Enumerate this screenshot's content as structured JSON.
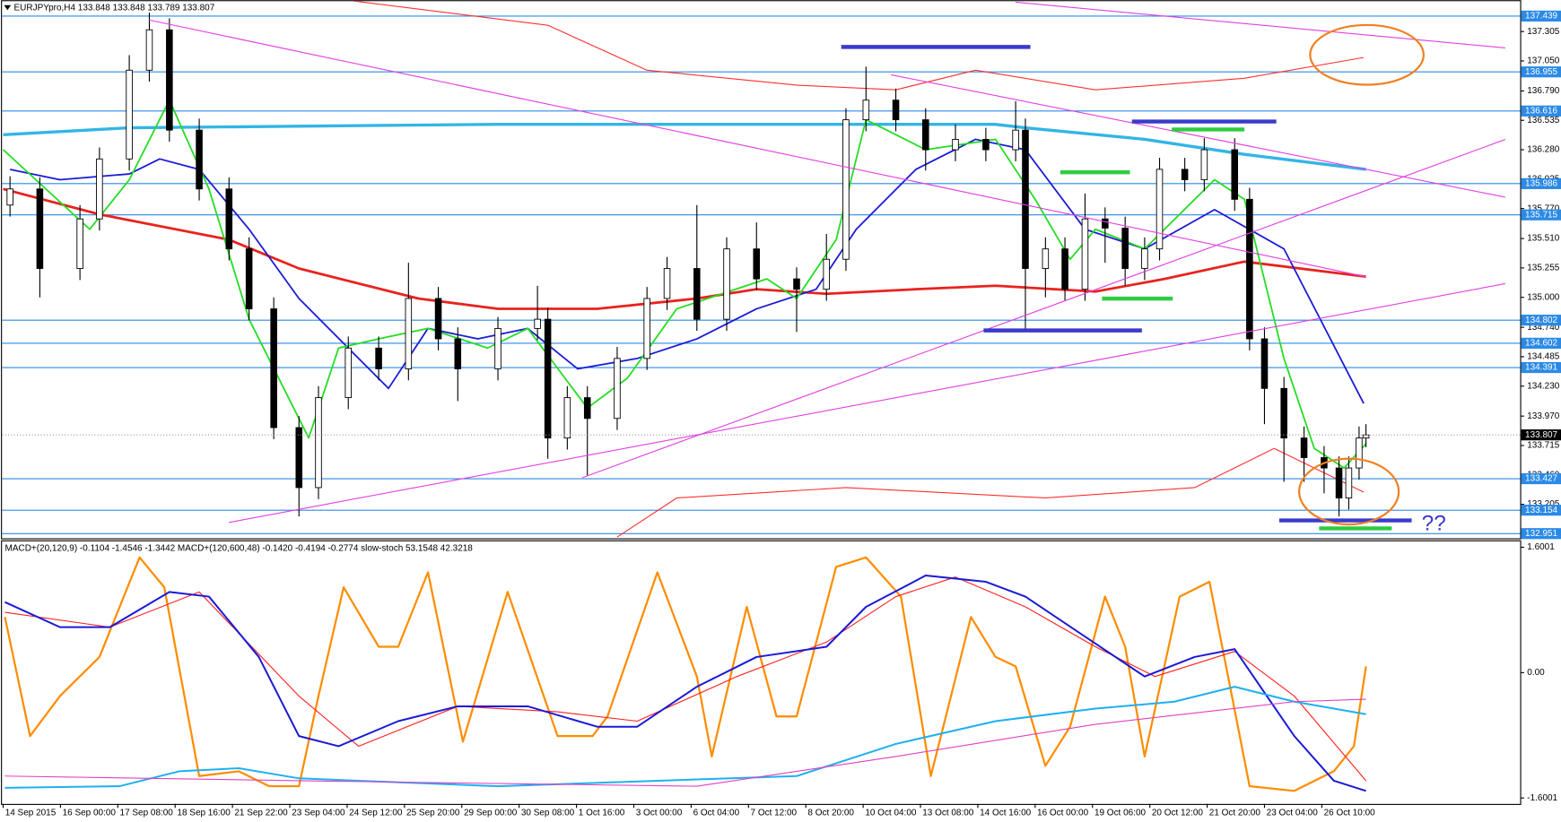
{
  "chart_data": [
    {
      "type": "candlestick",
      "title": "EURJPYpro,H4  133.848 133.848 133.789 133.807",
      "annotations": [
        "??"
      ],
      "xlim": [
        -0.02,
        26.46
      ],
      "xticks": [
        {
          "value": 0,
          "label": "14 Sep 2015"
        },
        {
          "value": 1,
          "label": "16 Sep 00:00"
        },
        {
          "value": 2,
          "label": "17 Sep 08:00"
        },
        {
          "value": 3,
          "label": "18 Sep 16:00"
        },
        {
          "value": 4,
          "label": "21 Sep 22:00"
        },
        {
          "value": 5,
          "label": "23 Sep 04:00"
        },
        {
          "value": 6,
          "label": "24 Sep 12:00"
        },
        {
          "value": 7,
          "label": "25 Sep 20:00"
        },
        {
          "value": 8,
          "label": "29 Sep 00:00"
        },
        {
          "value": 9,
          "label": "30 Sep 08:00"
        },
        {
          "value": 10,
          "label": "1 Oct 16:00"
        },
        {
          "value": 11,
          "label": "3 Oct 00:00"
        },
        {
          "value": 12,
          "label": "6 Oct 04:00"
        },
        {
          "value": 13,
          "label": "7 Oct 12:00"
        },
        {
          "value": 14,
          "label": "8 Oct 20:00"
        },
        {
          "value": 15,
          "label": "10 Oct 04:00"
        },
        {
          "value": 16,
          "label": "13 Oct 08:00"
        },
        {
          "value": 17,
          "label": "14 Oct 16:00"
        },
        {
          "value": 18,
          "label": "16 Oct 00:00"
        },
        {
          "value": 19,
          "label": "19 Oct 06:00"
        },
        {
          "value": 20,
          "label": "20 Oct 12:00"
        },
        {
          "value": 21,
          "label": "21 Oct 20:00"
        },
        {
          "value": 22,
          "label": "23 Oct 04:00"
        },
        {
          "value": 23,
          "label": "26 Oct 10:00"
        }
      ],
      "ylim": [
        132.91,
        137.577
      ],
      "yticks": [
        137.305,
        {
          "value": 137.05,
          "label": "137.050"
        },
        {
          "value": 136.79,
          "label": "136.790"
        },
        136.535,
        {
          "value": 136.28,
          "label": "136.280"
        },
        136.025,
        {
          "value": 135.77,
          "label": "135.770"
        },
        {
          "value": 135.51,
          "label": "135.510"
        },
        135.255,
        {
          "value": 135,
          "label": "135.000"
        },
        {
          "value": 134.74,
          "label": "134.740"
        },
        134.485,
        {
          "value": 134.23,
          "label": "134.230"
        },
        {
          "value": 133.97,
          "label": "133.970"
        },
        133.715,
        {
          "value": 133.46,
          "label": "133.460"
        },
        133.205
      ],
      "levels": [
        137.439,
        136.955,
        136.616,
        135.986,
        135.715,
        134.802,
        134.602,
        134.391,
        133.427,
        133.154,
        132.951
      ],
      "level_color": "#2b8ae6",
      "last_price": 133.807,
      "up_color": "#ffffff",
      "down_color": "#000000",
      "x": [
        0.12,
        0.64,
        1.34,
        1.68,
        2.2,
        2.55,
        2.9,
        3.42,
        3.94,
        4.29,
        4.72,
        5.16,
        5.5,
        6.02,
        6.55,
        7.07,
        7.59,
        7.93,
        8.63,
        9.32,
        9.5,
        9.84,
        10.19,
        10.71,
        11.23,
        11.58,
        12.1,
        12.62,
        13.14,
        13.84,
        14.36,
        14.7,
        15.05,
        15.57,
        16.09,
        16.61,
        17.14,
        17.66,
        17.83,
        18.18,
        18.52,
        18.87,
        19.22,
        19.57,
        19.91,
        20.17,
        20.61,
        20.95,
        21.48,
        21.74,
        22.0,
        22.34,
        22.69,
        23.04,
        23.3,
        23.47,
        23.65,
        23.77
      ],
      "open": [
        135.8,
        135.94,
        135.25,
        135.68,
        136.2,
        136.97,
        137.32,
        136.45,
        135.94,
        135.42,
        134.9,
        133.87,
        133.35,
        134.13,
        134.56,
        134.38,
        134.99,
        134.64,
        134.38,
        134.73,
        134.81,
        133.78,
        134.13,
        133.95,
        134.47,
        134.99,
        135.25,
        134.81,
        135.42,
        135.16,
        135.07,
        135.33,
        136.54,
        136.71,
        136.54,
        136.28,
        136.37,
        136.28,
        136.45,
        135.25,
        135.42,
        135.07,
        135.68,
        135.6,
        135.25,
        135.42,
        136.11,
        136.02,
        136.28,
        135.85,
        134.64,
        134.21,
        133.78,
        133.61,
        133.52,
        133.26,
        133.52,
        133.78
      ],
      "high": [
        136.05,
        136.04,
        135.8,
        136.3,
        137.1,
        137.47,
        137.42,
        136.55,
        136.04,
        135.52,
        135.0,
        133.97,
        134.23,
        134.66,
        134.66,
        135.3,
        135.09,
        134.74,
        134.83,
        135.1,
        134.91,
        134.23,
        134.23,
        134.57,
        135.09,
        135.35,
        135.8,
        135.52,
        135.65,
        135.26,
        135.55,
        136.64,
        137.0,
        136.81,
        136.64,
        136.5,
        136.47,
        136.7,
        136.55,
        135.52,
        135.52,
        135.9,
        135.78,
        135.7,
        135.52,
        136.21,
        136.21,
        136.38,
        136.38,
        135.95,
        134.74,
        134.31,
        133.88,
        133.71,
        133.62,
        133.62,
        133.88,
        133.9
      ],
      "low": [
        135.7,
        135.0,
        135.15,
        135.58,
        136.1,
        136.87,
        136.35,
        135.84,
        135.32,
        134.8,
        133.77,
        133.1,
        133.25,
        134.03,
        134.28,
        134.28,
        134.54,
        134.1,
        134.28,
        134.63,
        133.6,
        133.68,
        133.45,
        133.85,
        134.37,
        134.89,
        134.71,
        134.71,
        135.06,
        134.7,
        134.97,
        135.23,
        136.44,
        136.44,
        136.1,
        136.18,
        136.18,
        136.18,
        134.7,
        135.0,
        134.97,
        134.97,
        135.3,
        135.1,
        135.15,
        135.32,
        135.92,
        135.92,
        135.75,
        134.54,
        133.9,
        133.4,
        133.4,
        133.3,
        133.1,
        133.16,
        133.42,
        133.7
      ],
      "close": [
        135.94,
        135.25,
        135.68,
        136.2,
        136.97,
        137.32,
        136.45,
        135.94,
        135.42,
        134.9,
        133.87,
        133.35,
        134.13,
        134.56,
        134.38,
        134.99,
        134.64,
        134.38,
        134.73,
        134.81,
        133.78,
        134.13,
        133.95,
        134.47,
        134.99,
        135.25,
        134.81,
        135.42,
        135.16,
        135.07,
        135.33,
        136.54,
        136.71,
        136.54,
        136.28,
        136.37,
        136.28,
        136.45,
        135.25,
        135.42,
        135.07,
        135.68,
        135.6,
        135.25,
        135.42,
        136.11,
        136.02,
        136.28,
        135.85,
        134.64,
        134.21,
        133.78,
        133.61,
        133.52,
        133.26,
        133.52,
        133.78,
        133.807
      ],
      "overlays": [
        {
          "color": "#33b5e5",
          "width": 3,
          "x": [
            0,
            2.2,
            8.63,
            17.3,
            17.83,
            19.91,
            21.65,
            23.77
          ],
          "values": [
            136.41,
            136.47,
            136.5,
            136.5,
            136.47,
            136.37,
            136.24,
            136.11
          ]
        },
        {
          "color": "#e8231e",
          "width": 2.5,
          "x": [
            0,
            1.68,
            3.94,
            5.16,
            7.24,
            8.63,
            10.36,
            12.1,
            13.14,
            14.36,
            15.92,
            17.31,
            19.05,
            20.26,
            21.65,
            23.77
          ],
          "values": [
            135.94,
            135.72,
            135.5,
            135.25,
            134.99,
            134.9,
            134.9,
            134.99,
            135.07,
            135.03,
            135.07,
            135.1,
            135.05,
            135.16,
            135.31,
            135.18
          ]
        },
        {
          "color": "#ff3030",
          "width": 1,
          "x": [
            6.11,
            9.5,
            11.23,
            13.84,
            15.57,
            16.96,
            19.05,
            21.65,
            23.73
          ],
          "values": [
            137.57,
            137.36,
            136.97,
            136.84,
            136.8,
            136.97,
            136.8,
            136.9,
            137.08
          ]
        },
        {
          "color": "#ff3030",
          "width": 1,
          "x": [
            10.71,
            11.75,
            14.7,
            18.18,
            20.78,
            22.17,
            23.73
          ],
          "values": [
            132.92,
            133.26,
            133.35,
            133.26,
            133.35,
            133.69,
            133.31
          ]
        },
        {
          "color": "#1a1ad6",
          "width": 1.6,
          "x": [
            0.12,
            0.99,
            2.2,
            2.73,
            3.42,
            4.29,
            5.16,
            6.02,
            6.72,
            7.41,
            8.28,
            9.15,
            10.02,
            11.06,
            12.1,
            13.14,
            14.18,
            14.88,
            15.92,
            16.96,
            17.83,
            18.87,
            19.91,
            21.13,
            22.34,
            23.73
          ],
          "values": [
            136.11,
            136.02,
            136.07,
            136.2,
            136.11,
            135.59,
            134.99,
            134.56,
            134.21,
            134.73,
            134.64,
            134.73,
            134.38,
            134.47,
            134.64,
            134.9,
            135.07,
            135.59,
            136.11,
            136.37,
            136.28,
            135.59,
            135.42,
            135.76,
            135.42,
            134.08
          ]
        },
        {
          "color": "#22dd22",
          "width": 1.6,
          "x": [
            0,
            1.51,
            2.2,
            2.9,
            3.59,
            4.29,
            5.33,
            5.85,
            6.55,
            7.41,
            8.45,
            9.15,
            10.19,
            10.89,
            11.75,
            13.32,
            13.84,
            14.53,
            15.05,
            16.09,
            17.31,
            18.0,
            18.61,
            19.05,
            19.91,
            21.13,
            21.65,
            22.34,
            22.87,
            23.39,
            23.77
          ],
          "values": [
            136.28,
            135.59,
            136.02,
            136.71,
            135.94,
            134.81,
            133.78,
            134.56,
            134.64,
            134.73,
            134.56,
            134.73,
            134.04,
            134.3,
            134.9,
            135.16,
            134.99,
            135.5,
            136.54,
            136.28,
            136.37,
            135.85,
            135.33,
            135.59,
            135.42,
            136.02,
            135.85,
            134.47,
            133.69,
            133.52,
            133.73
          ]
        }
      ]
    },
    {
      "type": "line",
      "title": "MACD+(20,120,9) -0.1104 -1.4546 -1.3442  MACD+(120,600,48) -0.1420 -0.4194 -0.2774  slow-stoch 53.1548 42.3218",
      "xlim": [
        -0.02,
        26.46
      ],
      "ylim": [
        -1.676,
        1.689
      ],
      "yticks": [
        1.6001,
        {
          "value": 0,
          "label": "0.00"
        },
        -1.6001
      ],
      "series": [
        {
          "color": "#ff8c00",
          "width": 2,
          "x": [
            0.03,
            0.47,
            0.99,
            1.68,
            2.38,
            2.81,
            3.42,
            4.11,
            4.64,
            5.16,
            5.5,
            5.94,
            6.55,
            6.89,
            7.41,
            8.02,
            8.8,
            9.67,
            10.28,
            10.54,
            11.41,
            12.1,
            12.36,
            12.97,
            13.49,
            13.84,
            14.53,
            15.05,
            15.66,
            16.18,
            16.88,
            17.31,
            17.66,
            18.18,
            18.61,
            19.22,
            19.57,
            19.91,
            20.52,
            21.04,
            21.74,
            22.52,
            23.21,
            23.56,
            23.77
          ],
          "values": [
            0.71,
            -0.81,
            -0.3,
            0.2,
            1.47,
            1.09,
            -1.32,
            -1.26,
            -1.45,
            -1.45,
            -0.3,
            1.09,
            0.33,
            0.33,
            1.28,
            -0.88,
            1.03,
            -0.81,
            -0.81,
            -0.56,
            1.28,
            -0.05,
            -1.07,
            0.84,
            -0.56,
            -0.56,
            1.35,
            1.47,
            0.97,
            -1.32,
            0.71,
            0.2,
            0.08,
            -1.19,
            -0.69,
            0.97,
            0.33,
            -1.07,
            0.97,
            1.16,
            -1.45,
            -1.51,
            -1.26,
            -0.94,
            0.08
          ]
        },
        {
          "color": "#ff2020",
          "width": 1,
          "x": [
            0.03,
            1.86,
            3.42,
            5.16,
            6.2,
            7.93,
            9.67,
            11.06,
            12.8,
            14.36,
            15.57,
            16.61,
            17.83,
            19.05,
            20.09,
            21.48,
            22.52,
            23.77
          ],
          "values": [
            0.77,
            0.58,
            1.03,
            -0.3,
            -0.94,
            -0.43,
            -0.5,
            -0.62,
            -0.05,
            0.39,
            0.97,
            1.22,
            0.84,
            0.33,
            -0.05,
            0.27,
            -0.3,
            -1.38
          ]
        },
        {
          "color": "#1a1ad6",
          "width": 1.8,
          "x": [
            0.03,
            0.99,
            1.86,
            2.9,
            3.59,
            4.46,
            5.16,
            5.85,
            6.89,
            7.93,
            9.15,
            10.36,
            11.06,
            12.1,
            13.14,
            14.36,
            15.05,
            16.09,
            17.14,
            17.83,
            18.87,
            19.91,
            20.78,
            21.48,
            22.52,
            23.21,
            23.77
          ],
          "values": [
            0.9,
            0.58,
            0.58,
            1.03,
            0.97,
            0.2,
            -0.81,
            -0.94,
            -0.62,
            -0.43,
            -0.43,
            -0.69,
            -0.69,
            -0.18,
            0.2,
            0.33,
            0.84,
            1.24,
            1.16,
            0.97,
            0.46,
            -0.05,
            0.2,
            0.3,
            -0.81,
            -1.38,
            -1.51
          ]
        },
        {
          "color": "#1fb0f0",
          "width": 1.8,
          "x": [
            0.03,
            2.03,
            3.07,
            4.11,
            5.16,
            8.63,
            13.84,
            15.57,
            17.31,
            19.05,
            20.43,
            21.48,
            22.52,
            23.77
          ],
          "values": [
            -1.47,
            -1.45,
            -1.26,
            -1.22,
            -1.35,
            -1.45,
            -1.32,
            -0.91,
            -0.62,
            -0.46,
            -0.37,
            -0.18,
            -0.37,
            -0.53
          ]
        },
        {
          "color": "#e040c0",
          "width": 1,
          "x": [
            0.03,
            5.16,
            12.1,
            15.57,
            19.05,
            22.52,
            23.77
          ],
          "values": [
            -1.32,
            -1.38,
            -1.45,
            -1.07,
            -0.66,
            -0.37,
            -0.34
          ]
        }
      ]
    }
  ]
}
